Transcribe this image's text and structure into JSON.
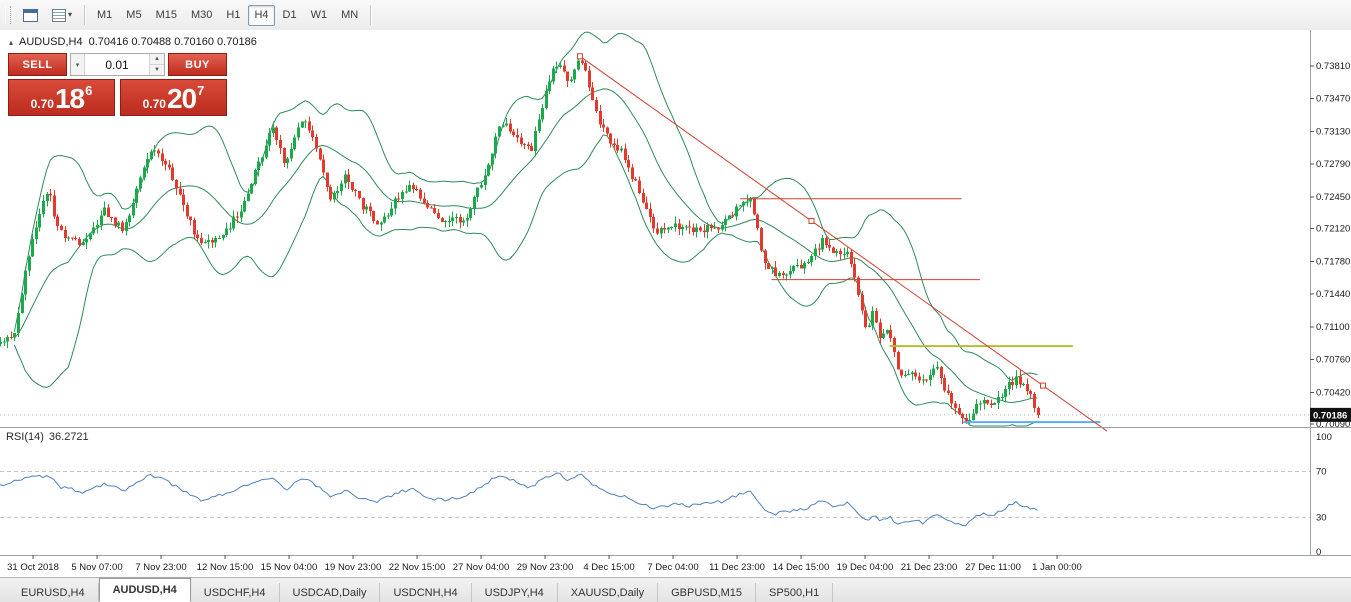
{
  "toolbar": {
    "timeframes": [
      {
        "label": "M1",
        "active": false
      },
      {
        "label": "M5",
        "active": false
      },
      {
        "label": "M15",
        "active": false
      },
      {
        "label": "M30",
        "active": false
      },
      {
        "label": "H1",
        "active": false
      },
      {
        "label": "H4",
        "active": true
      },
      {
        "label": "D1",
        "active": false
      },
      {
        "label": "W1",
        "active": false
      },
      {
        "label": "MN",
        "active": false
      }
    ]
  },
  "chart_header": {
    "symbol": "AUDUSD,H4",
    "ohlc": "0.70416 0.70488 0.70160 0.70186"
  },
  "one_click": {
    "sell_label": "SELL",
    "buy_label": "BUY",
    "volume": "0.01",
    "bid": {
      "prefix": "0.70",
      "big": "18",
      "sup": "6"
    },
    "ask": {
      "prefix": "0.70",
      "big": "20",
      "sup": "7"
    }
  },
  "price_scale": {
    "labels": [
      "0.73810",
      "0.73470",
      "0.73130",
      "0.72790",
      "0.72450",
      "0.72120",
      "0.71780",
      "0.71440",
      "0.71100",
      "0.70760",
      "0.70420",
      "0.70090"
    ],
    "current_price": "0.70186"
  },
  "time_axis": [
    "31 Oct 2018",
    "5 Nov 07:00",
    "7 Nov 23:00",
    "12 Nov 15:00",
    "15 Nov 04:00",
    "19 Nov 23:00",
    "22 Nov 15:00",
    "27 Nov 04:00",
    "29 Nov 23:00",
    "4 Dec 15:00",
    "7 Dec 04:00",
    "11 Dec 23:00",
    "14 Dec 15:00",
    "19 Dec 04:00",
    "21 Dec 23:00",
    "27 Dec 11:00",
    "1 Jan 00:00"
  ],
  "rsi_panel": {
    "title": "RSI(14)",
    "value": "36.2721",
    "scale_labels": [
      "100",
      "70",
      "30",
      "0"
    ],
    "level_lines": [
      70,
      30
    ]
  },
  "tabs": [
    {
      "label": "EURUSD,H4",
      "active": false
    },
    {
      "label": "AUDUSD,H4",
      "active": true
    },
    {
      "label": "USDCHF,H4",
      "active": false
    },
    {
      "label": "USDCAD,Daily",
      "active": false
    },
    {
      "label": "USDCNH,H4",
      "active": false
    },
    {
      "label": "USDJPY,H4",
      "active": false
    },
    {
      "label": "XAUUSD,Daily",
      "active": false
    },
    {
      "label": "GBPUSD,M15",
      "active": false
    },
    {
      "label": "SP500,H1",
      "active": false
    }
  ],
  "colors": {
    "accent_red": "#c0392b",
    "candle_up": "#1ba94c",
    "candle_down": "#e23b2e",
    "bollinger": "#2e8b57",
    "rsi_line": "#4f81bd",
    "trend_red": "#d0402f",
    "yellow_line": "#b7bd35",
    "blue_line": "#5aaef0",
    "badge_bg": "#111111"
  },
  "chart_data": {
    "type": "candlestick",
    "symbol": "AUDUSD",
    "timeframe": "H4",
    "grid": false,
    "ylim": [
      0.7006,
      0.741
    ],
    "bar_count": 290,
    "last_close": 0.70186,
    "bid": 0.70186,
    "ask": 0.70207,
    "bollinger": {
      "period": 20,
      "deviation": 2
    },
    "trendline": {
      "x1": 0.4427,
      "price1": 0.7391,
      "x2": 0.7962,
      "price2": 0.7049,
      "ray_x": 0.845
    },
    "hlines": [
      {
        "price": 0.7243,
        "x1": 0.565,
        "x2": 0.734,
        "color": "#d0402f",
        "width": 1
      },
      {
        "price": 0.7159,
        "x1": 0.589,
        "x2": 0.748,
        "color": "#d0402f",
        "width": 1
      },
      {
        "price": 0.709,
        "x1": 0.679,
        "x2": 0.819,
        "color": "#b7bd35",
        "width": 2
      },
      {
        "price": 0.7011,
        "x1": 0.735,
        "x2": 0.84,
        "color": "#5aaef0",
        "width": 2
      }
    ],
    "price_path": [
      [
        0.0,
        0.7092
      ],
      [
        0.006,
        0.7098
      ],
      [
        0.011,
        0.7107
      ],
      [
        0.017,
        0.715
      ],
      [
        0.023,
        0.719
      ],
      [
        0.03,
        0.7228
      ],
      [
        0.037,
        0.725
      ],
      [
        0.042,
        0.7222
      ],
      [
        0.047,
        0.7205
      ],
      [
        0.056,
        0.7198
      ],
      [
        0.065,
        0.72
      ],
      [
        0.073,
        0.7218
      ],
      [
        0.08,
        0.7231
      ],
      [
        0.088,
        0.7218
      ],
      [
        0.095,
        0.7211
      ],
      [
        0.104,
        0.7252
      ],
      [
        0.115,
        0.7295
      ],
      [
        0.121,
        0.7286
      ],
      [
        0.126,
        0.7283
      ],
      [
        0.131,
        0.7262
      ],
      [
        0.137,
        0.7247
      ],
      [
        0.145,
        0.7218
      ],
      [
        0.153,
        0.7195
      ],
      [
        0.162,
        0.7199
      ],
      [
        0.17,
        0.7205
      ],
      [
        0.178,
        0.7222
      ],
      [
        0.185,
        0.7236
      ],
      [
        0.192,
        0.7258
      ],
      [
        0.198,
        0.7283
      ],
      [
        0.203,
        0.73
      ],
      [
        0.208,
        0.7314
      ],
      [
        0.213,
        0.7295
      ],
      [
        0.218,
        0.7278
      ],
      [
        0.225,
        0.7305
      ],
      [
        0.231,
        0.7329
      ],
      [
        0.237,
        0.7312
      ],
      [
        0.243,
        0.7293
      ],
      [
        0.248,
        0.7262
      ],
      [
        0.253,
        0.7241
      ],
      [
        0.258,
        0.7255
      ],
      [
        0.263,
        0.7267
      ],
      [
        0.27,
        0.725
      ],
      [
        0.276,
        0.7236
      ],
      [
        0.283,
        0.7225
      ],
      [
        0.289,
        0.7216
      ],
      [
        0.296,
        0.7228
      ],
      [
        0.302,
        0.7241
      ],
      [
        0.309,
        0.725
      ],
      [
        0.315,
        0.7257
      ],
      [
        0.322,
        0.7243
      ],
      [
        0.328,
        0.7231
      ],
      [
        0.335,
        0.7224
      ],
      [
        0.342,
        0.7219
      ],
      [
        0.35,
        0.7222
      ],
      [
        0.357,
        0.7226
      ],
      [
        0.365,
        0.7252
      ],
      [
        0.373,
        0.7283
      ],
      [
        0.378,
        0.7305
      ],
      [
        0.382,
        0.7324
      ],
      [
        0.388,
        0.7316
      ],
      [
        0.393,
        0.7309
      ],
      [
        0.399,
        0.73
      ],
      [
        0.405,
        0.7293
      ],
      [
        0.411,
        0.7325
      ],
      [
        0.416,
        0.7355
      ],
      [
        0.421,
        0.7372
      ],
      [
        0.426,
        0.7386
      ],
      [
        0.43,
        0.7372
      ],
      [
        0.434,
        0.7361
      ],
      [
        0.439,
        0.7377
      ],
      [
        0.443,
        0.7391
      ],
      [
        0.449,
        0.736
      ],
      [
        0.454,
        0.7334
      ],
      [
        0.46,
        0.7317
      ],
      [
        0.466,
        0.7303
      ],
      [
        0.471,
        0.7297
      ],
      [
        0.475,
        0.7293
      ],
      [
        0.481,
        0.7272
      ],
      [
        0.487,
        0.7252
      ],
      [
        0.494,
        0.7228
      ],
      [
        0.5,
        0.7208
      ],
      [
        0.507,
        0.7211
      ],
      [
        0.513,
        0.7215
      ],
      [
        0.52,
        0.7212
      ],
      [
        0.527,
        0.721
      ],
      [
        0.538,
        0.7212
      ],
      [
        0.551,
        0.7215
      ],
      [
        0.558,
        0.7226
      ],
      [
        0.565,
        0.7236
      ],
      [
        0.573,
        0.7243
      ],
      [
        0.578,
        0.721
      ],
      [
        0.582,
        0.7184
      ],
      [
        0.587,
        0.7172
      ],
      [
        0.592,
        0.7166
      ],
      [
        0.598,
        0.7168
      ],
      [
        0.603,
        0.717
      ],
      [
        0.61,
        0.7173
      ],
      [
        0.617,
        0.7176
      ],
      [
        0.622,
        0.7188
      ],
      [
        0.627,
        0.7199
      ],
      [
        0.632,
        0.7191
      ],
      [
        0.637,
        0.7184
      ],
      [
        0.642,
        0.7188
      ],
      [
        0.647,
        0.7191
      ],
      [
        0.651,
        0.717
      ],
      [
        0.655,
        0.7147
      ],
      [
        0.658,
        0.7124
      ],
      [
        0.661,
        0.7106
      ],
      [
        0.664,
        0.7118
      ],
      [
        0.666,
        0.7127
      ],
      [
        0.669,
        0.711
      ],
      [
        0.672,
        0.7096
      ],
      [
        0.676,
        0.7101
      ],
      [
        0.679,
        0.7106
      ],
      [
        0.681,
        0.709
      ],
      [
        0.683,
        0.7075
      ],
      [
        0.686,
        0.7064
      ],
      [
        0.689,
        0.7056
      ],
      [
        0.692,
        0.706
      ],
      [
        0.695,
        0.7064
      ],
      [
        0.698,
        0.706
      ],
      [
        0.701,
        0.7056
      ],
      [
        0.704,
        0.7052
      ],
      [
        0.706,
        0.7049
      ],
      [
        0.709,
        0.7057
      ],
      [
        0.711,
        0.7064
      ],
      [
        0.714,
        0.7068
      ],
      [
        0.716,
        0.7072
      ],
      [
        0.719,
        0.7056
      ],
      [
        0.721,
        0.7043
      ],
      [
        0.724,
        0.7037
      ],
      [
        0.727,
        0.7032
      ],
      [
        0.73,
        0.7026
      ],
      [
        0.733,
        0.702
      ],
      [
        0.736,
        0.7016
      ],
      [
        0.738,
        0.7013
      ],
      [
        0.741,
        0.7019
      ],
      [
        0.744,
        0.7025
      ],
      [
        0.748,
        0.703
      ],
      [
        0.752,
        0.7035
      ],
      [
        0.756,
        0.7032
      ],
      [
        0.759,
        0.703
      ],
      [
        0.763,
        0.7037
      ],
      [
        0.767,
        0.7045
      ],
      [
        0.771,
        0.7051
      ],
      [
        0.775,
        0.7056
      ],
      [
        0.778,
        0.7053
      ],
      [
        0.78,
        0.705
      ],
      [
        0.783,
        0.7045
      ],
      [
        0.786,
        0.704
      ],
      [
        0.789,
        0.703
      ],
      [
        0.792,
        0.70186
      ]
    ],
    "rsi": {
      "period": 14,
      "current": 36.2721,
      "path": [
        [
          0.0,
          58
        ],
        [
          0.011,
          62
        ],
        [
          0.023,
          65
        ],
        [
          0.037,
          66
        ],
        [
          0.047,
          56
        ],
        [
          0.065,
          52
        ],
        [
          0.08,
          60
        ],
        [
          0.095,
          54
        ],
        [
          0.115,
          67
        ],
        [
          0.126,
          62
        ],
        [
          0.137,
          55
        ],
        [
          0.153,
          45
        ],
        [
          0.17,
          50
        ],
        [
          0.185,
          57
        ],
        [
          0.208,
          64
        ],
        [
          0.218,
          54
        ],
        [
          0.231,
          65
        ],
        [
          0.243,
          57
        ],
        [
          0.253,
          47
        ],
        [
          0.263,
          54
        ],
        [
          0.276,
          46
        ],
        [
          0.289,
          44
        ],
        [
          0.302,
          51
        ],
        [
          0.315,
          55
        ],
        [
          0.328,
          47
        ],
        [
          0.342,
          45
        ],
        [
          0.357,
          50
        ],
        [
          0.373,
          61
        ],
        [
          0.382,
          68
        ],
        [
          0.393,
          61
        ],
        [
          0.405,
          56
        ],
        [
          0.416,
          65
        ],
        [
          0.426,
          70
        ],
        [
          0.434,
          62
        ],
        [
          0.443,
          69
        ],
        [
          0.454,
          57
        ],
        [
          0.466,
          51
        ],
        [
          0.475,
          49
        ],
        [
          0.487,
          43
        ],
        [
          0.5,
          37
        ],
        [
          0.513,
          42
        ],
        [
          0.527,
          40
        ],
        [
          0.538,
          42
        ],
        [
          0.551,
          44
        ],
        [
          0.565,
          50
        ],
        [
          0.573,
          53
        ],
        [
          0.582,
          38
        ],
        [
          0.592,
          33
        ],
        [
          0.603,
          36
        ],
        [
          0.617,
          38
        ],
        [
          0.627,
          45
        ],
        [
          0.637,
          40
        ],
        [
          0.647,
          43
        ],
        [
          0.655,
          33
        ],
        [
          0.661,
          27
        ],
        [
          0.666,
          32
        ],
        [
          0.672,
          28
        ],
        [
          0.679,
          31
        ],
        [
          0.683,
          26
        ],
        [
          0.689,
          24
        ],
        [
          0.695,
          28
        ],
        [
          0.701,
          27
        ],
        [
          0.706,
          25
        ],
        [
          0.711,
          30
        ],
        [
          0.716,
          33
        ],
        [
          0.721,
          28
        ],
        [
          0.727,
          26
        ],
        [
          0.733,
          24
        ],
        [
          0.738,
          23
        ],
        [
          0.744,
          30
        ],
        [
          0.752,
          34
        ],
        [
          0.759,
          32
        ],
        [
          0.767,
          38
        ],
        [
          0.775,
          44
        ],
        [
          0.78,
          41
        ],
        [
          0.786,
          39
        ],
        [
          0.792,
          36.27
        ]
      ]
    }
  }
}
